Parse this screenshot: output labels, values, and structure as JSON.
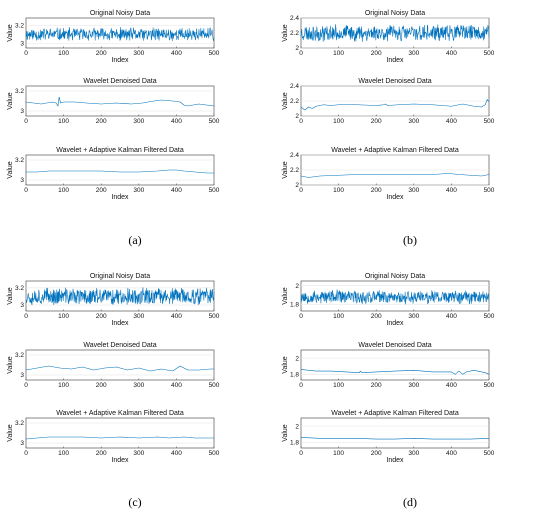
{
  "colors": {
    "series": "#0072BD"
  },
  "figures": [
    {
      "caption": "(a)"
    },
    {
      "caption": "(b)"
    },
    {
      "caption": "(c)"
    },
    {
      "caption": "(d)"
    }
  ],
  "chart_data": [
    {
      "type": "line",
      "title": "Original Noisy Data",
      "xlabel": "Index",
      "ylabel": "Value",
      "xlim": [
        0,
        500
      ],
      "ylim": [
        2.95,
        3.28
      ],
      "xticks": [
        0,
        100,
        200,
        300,
        400,
        500
      ],
      "yticks": [
        3,
        3.2
      ],
      "x_tick_labels": [
        "0",
        "100",
        "200",
        "300",
        "400",
        "500"
      ],
      "y_tick_labels": [
        "3",
        "3.2"
      ],
      "series": [
        {
          "kind": "noise",
          "base": 3.1,
          "amp": 0.08,
          "seed": 11
        }
      ]
    },
    {
      "type": "line",
      "title": "Wavelet Denoised Data",
      "xlabel": "",
      "ylabel": "Value",
      "xlim": [
        0,
        500
      ],
      "ylim": [
        2.95,
        3.25
      ],
      "xticks": [
        0,
        100,
        200,
        300,
        400,
        500
      ],
      "yticks": [
        3,
        3.2
      ],
      "x_tick_labels": [
        "0",
        "100",
        "200",
        "300",
        "400",
        "500"
      ],
      "y_tick_labels": [
        "3",
        "3.2"
      ],
      "series": [
        {
          "kind": "points",
          "x": [
            0,
            20,
            40,
            55,
            70,
            80,
            85,
            88,
            92,
            100,
            130,
            160,
            200,
            240,
            280,
            310,
            340,
            360,
            390,
            410,
            420,
            430,
            445,
            460,
            480,
            500
          ],
          "y": [
            3.09,
            3.08,
            3.07,
            3.08,
            3.09,
            3.08,
            3.05,
            3.14,
            3.08,
            3.09,
            3.09,
            3.08,
            3.07,
            3.08,
            3.07,
            3.08,
            3.1,
            3.11,
            3.1,
            3.09,
            3.06,
            3.05,
            3.06,
            3.07,
            3.06,
            3.05
          ]
        }
      ]
    },
    {
      "type": "line",
      "title": "Wavelet + Adaptive Kalman Filtered Data",
      "xlabel": "Index",
      "ylabel": "Value",
      "xlim": [
        0,
        500
      ],
      "ylim": [
        2.95,
        3.25
      ],
      "xticks": [
        0,
        100,
        200,
        300,
        400,
        500
      ],
      "yticks": [
        3,
        3.2
      ],
      "x_tick_labels": [
        "0",
        "100",
        "200",
        "300",
        "400",
        "500"
      ],
      "y_tick_labels": [
        "3",
        "3.2"
      ],
      "series": [
        {
          "kind": "points",
          "x": [
            0,
            30,
            60,
            100,
            150,
            200,
            250,
            300,
            350,
            380,
            400,
            420,
            450,
            480,
            500
          ],
          "y": [
            3.08,
            3.08,
            3.09,
            3.09,
            3.09,
            3.09,
            3.08,
            3.08,
            3.09,
            3.1,
            3.1,
            3.09,
            3.08,
            3.07,
            3.07
          ]
        }
      ]
    },
    {
      "type": "line",
      "title": "Original Noisy Data",
      "xlabel": "Index",
      "ylabel": "Value",
      "xlim": [
        0,
        500
      ],
      "ylim": [
        2.0,
        2.4
      ],
      "xticks": [
        0,
        100,
        200,
        300,
        400,
        500
      ],
      "yticks": [
        2,
        2.2,
        2.4
      ],
      "x_tick_labels": [
        "0",
        "100",
        "200",
        "300",
        "400",
        "500"
      ],
      "y_tick_labels": [
        "2",
        "2.2",
        "2.4"
      ],
      "series": [
        {
          "kind": "noise",
          "base": 2.2,
          "amp": 0.12,
          "seed": 23
        }
      ]
    },
    {
      "type": "line",
      "title": "Wavelet Denoised Data",
      "xlabel": "",
      "ylabel": "Value",
      "xlim": [
        0,
        500
      ],
      "ylim": [
        2.0,
        2.4
      ],
      "xticks": [
        0,
        100,
        200,
        300,
        400,
        500
      ],
      "yticks": [
        2,
        2.2,
        2.4
      ],
      "x_tick_labels": [
        "0",
        "100",
        "200",
        "300",
        "400",
        "500"
      ],
      "y_tick_labels": [
        "2",
        "2.2",
        "2.4"
      ],
      "series": [
        {
          "kind": "points",
          "x": [
            0,
            10,
            20,
            30,
            40,
            60,
            80,
            100,
            150,
            200,
            220,
            225,
            230,
            260,
            300,
            350,
            400,
            430,
            460,
            480,
            490,
            495,
            500
          ],
          "y": [
            2.12,
            2.08,
            2.12,
            2.1,
            2.13,
            2.15,
            2.14,
            2.15,
            2.15,
            2.14,
            2.15,
            2.16,
            2.14,
            2.15,
            2.16,
            2.15,
            2.13,
            2.16,
            2.13,
            2.12,
            2.15,
            2.22,
            2.19
          ]
        }
      ]
    },
    {
      "type": "line",
      "title": "Wavelet + Adaptive Kalman Filtered Data",
      "xlabel": "Index",
      "ylabel": "Value",
      "xlim": [
        0,
        500
      ],
      "ylim": [
        2.0,
        2.4
      ],
      "xticks": [
        0,
        100,
        200,
        300,
        400,
        500
      ],
      "yticks": [
        2,
        2.2,
        2.4
      ],
      "x_tick_labels": [
        "0",
        "100",
        "200",
        "300",
        "400",
        "500"
      ],
      "y_tick_labels": [
        "2",
        "2.2",
        "2.4"
      ],
      "series": [
        {
          "kind": "points",
          "x": [
            0,
            20,
            50,
            100,
            150,
            200,
            250,
            300,
            350,
            380,
            400,
            420,
            450,
            480,
            500
          ],
          "y": [
            2.12,
            2.1,
            2.12,
            2.13,
            2.14,
            2.14,
            2.14,
            2.14,
            2.14,
            2.15,
            2.15,
            2.14,
            2.13,
            2.12,
            2.14
          ]
        }
      ]
    },
    {
      "type": "line",
      "title": "Original Noisy Data",
      "xlabel": "Index",
      "ylabel": "Value",
      "xlim": [
        0,
        500
      ],
      "ylim": [
        2.93,
        3.28
      ],
      "xticks": [
        0,
        100,
        200,
        300,
        400,
        500
      ],
      "yticks": [
        3,
        3.2
      ],
      "x_tick_labels": [
        "0",
        "100",
        "200",
        "300",
        "400",
        "500"
      ],
      "y_tick_labels": [
        "3",
        "3.2"
      ],
      "series": [
        {
          "kind": "noise",
          "base": 3.1,
          "amp": 0.11,
          "seed": 37
        }
      ]
    },
    {
      "type": "line",
      "title": "Wavelet Denoised Data",
      "xlabel": "",
      "ylabel": "Value",
      "xlim": [
        0,
        500
      ],
      "ylim": [
        2.95,
        3.25
      ],
      "xticks": [
        0,
        100,
        200,
        300,
        400,
        500
      ],
      "yticks": [
        3,
        3.2
      ],
      "x_tick_labels": [
        "0",
        "100",
        "200",
        "300",
        "400",
        "500"
      ],
      "y_tick_labels": [
        "3",
        "3.2"
      ],
      "series": [
        {
          "kind": "points",
          "x": [
            0,
            30,
            60,
            90,
            120,
            150,
            180,
            210,
            240,
            270,
            300,
            330,
            360,
            390,
            410,
            430,
            460,
            490,
            500
          ],
          "y": [
            3.05,
            3.07,
            3.09,
            3.07,
            3.06,
            3.08,
            3.05,
            3.07,
            3.08,
            3.05,
            3.07,
            3.04,
            3.06,
            3.04,
            3.09,
            3.05,
            3.05,
            3.06,
            3.06
          ]
        }
      ]
    },
    {
      "type": "line",
      "title": "Wavelet + Adaptive Kalman Filtered Data",
      "xlabel": "Index",
      "ylabel": "Value",
      "xlim": [
        0,
        500
      ],
      "ylim": [
        2.95,
        3.25
      ],
      "xticks": [
        0,
        100,
        200,
        300,
        400,
        500
      ],
      "yticks": [
        3,
        3.2
      ],
      "x_tick_labels": [
        "0",
        "100",
        "200",
        "300",
        "400",
        "500"
      ],
      "y_tick_labels": [
        "3",
        "3.2"
      ],
      "series": [
        {
          "kind": "points",
          "x": [
            0,
            30,
            60,
            100,
            150,
            200,
            250,
            300,
            350,
            380,
            420,
            450,
            500
          ],
          "y": [
            3.04,
            3.05,
            3.06,
            3.06,
            3.06,
            3.05,
            3.06,
            3.05,
            3.06,
            3.05,
            3.06,
            3.05,
            3.05
          ]
        }
      ]
    },
    {
      "type": "line",
      "title": "Original Noisy Data",
      "xlabel": "Index",
      "ylabel": "Value",
      "xlim": [
        0,
        500
      ],
      "ylim": [
        1.73,
        2.05
      ],
      "xticks": [
        0,
        100,
        200,
        300,
        400,
        500
      ],
      "yticks": [
        1.8,
        2
      ],
      "x_tick_labels": [
        "0",
        "100",
        "200",
        "300",
        "400",
        "500"
      ],
      "y_tick_labels": [
        "1.8",
        "2"
      ],
      "series": [
        {
          "kind": "noise",
          "base": 1.88,
          "amp": 0.08,
          "seed": 53
        }
      ]
    },
    {
      "type": "line",
      "title": "Wavelet Denoised Data",
      "xlabel": "",
      "ylabel": "Value",
      "xlim": [
        0,
        500
      ],
      "ylim": [
        1.73,
        2.1
      ],
      "xticks": [
        0,
        100,
        200,
        300,
        400,
        500
      ],
      "yticks": [
        1.8,
        2
      ],
      "x_tick_labels": [
        "0",
        "100",
        "200",
        "300",
        "400",
        "500"
      ],
      "y_tick_labels": [
        "1.8",
        "2"
      ],
      "series": [
        {
          "kind": "points",
          "x": [
            0,
            40,
            80,
            120,
            155,
            158,
            162,
            200,
            250,
            300,
            350,
            400,
            410,
            420,
            430,
            440,
            460,
            490,
            500
          ],
          "y": [
            1.86,
            1.84,
            1.84,
            1.83,
            1.82,
            1.84,
            1.82,
            1.83,
            1.84,
            1.85,
            1.83,
            1.83,
            1.8,
            1.84,
            1.8,
            1.83,
            1.85,
            1.82,
            1.8
          ]
        }
      ]
    },
    {
      "type": "line",
      "title": "Wavelet + Adaptive Kalman Filtered Data",
      "xlabel": "Index",
      "ylabel": "Value",
      "xlim": [
        0,
        500
      ],
      "ylim": [
        1.73,
        2.1
      ],
      "xticks": [
        0,
        100,
        200,
        300,
        400,
        500
      ],
      "yticks": [
        1.8,
        2
      ],
      "x_tick_labels": [
        "0",
        "100",
        "200",
        "300",
        "400",
        "500"
      ],
      "y_tick_labels": [
        "1.8",
        "2"
      ],
      "series": [
        {
          "kind": "points",
          "x": [
            0,
            50,
            100,
            150,
            200,
            250,
            300,
            350,
            400,
            450,
            500
          ],
          "y": [
            1.86,
            1.85,
            1.85,
            1.85,
            1.84,
            1.84,
            1.85,
            1.84,
            1.84,
            1.84,
            1.85
          ]
        }
      ]
    }
  ]
}
